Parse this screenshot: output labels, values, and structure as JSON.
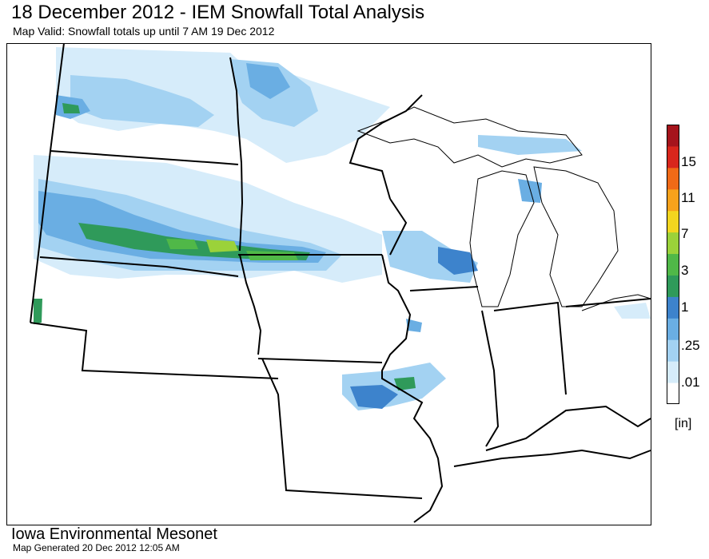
{
  "header": {
    "title": "18 December 2012 - IEM Snowfall Total Analysis",
    "subtitle": "Map Valid: Snowfall totals up until 7 AM 19 Dec 2012"
  },
  "legend": {
    "unit": "[in]",
    "labels": [
      "15",
      "11",
      "7",
      "3",
      "1",
      ".25",
      ".01"
    ],
    "colors": [
      "#ffffff",
      "#d6ecfa",
      "#a3d2f2",
      "#6aaee3",
      "#3d83cc",
      "#2f9a5a",
      "#50b848",
      "#9bd23a",
      "#f2d61f",
      "#f7a21b",
      "#f06a17",
      "#d8261c",
      "#a5141c"
    ]
  },
  "footer": {
    "organization": "Iowa Environmental Mesonet",
    "generated": "Map Generated 20 Dec 2012 12:05 AM"
  },
  "map": {
    "background": "#ffffff",
    "boundary_color": "#000000",
    "shading_colors": {
      "light": "#d6ecfa",
      "mid": "#a3d2f2",
      "blue": "#6aaee3",
      "dark": "#3d83cc",
      "green": "#2f9a5a",
      "lime": "#9bd23a"
    }
  }
}
